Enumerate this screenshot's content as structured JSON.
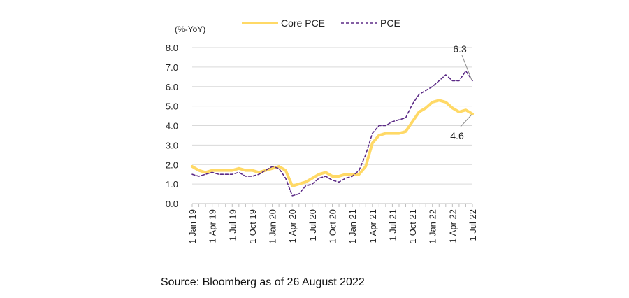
{
  "chart_data": {
    "type": "line",
    "unit_label": "(%-YoY)",
    "ylim": [
      0,
      8
    ],
    "y_ticks": [
      "0.0",
      "1.0",
      "2.0",
      "3.0",
      "4.0",
      "5.0",
      "6.0",
      "7.0",
      "8.0"
    ],
    "x_start": "2019-01",
    "x_tick_labels": [
      "1 Jan 19",
      "1 Apr 19",
      "1 Jul 19",
      "1 Oct 19",
      "1 Jan 20",
      "1 Apr 20",
      "1 Jul 20",
      "1 Oct 20",
      "1 Jan 21",
      "1 Apr 21",
      "1 Jul 21",
      "1 Oct 21",
      "1 Jan 22",
      "1 Apr 22",
      "1 Jul 22"
    ],
    "grid": true,
    "legend_position": "top",
    "series": [
      {
        "name": "Core PCE",
        "color": "#FFD966",
        "style": "solid",
        "values": [
          1.9,
          1.7,
          1.6,
          1.7,
          1.7,
          1.7,
          1.7,
          1.8,
          1.7,
          1.7,
          1.6,
          1.7,
          1.8,
          1.9,
          1.7,
          0.9,
          1.0,
          1.1,
          1.3,
          1.5,
          1.6,
          1.4,
          1.4,
          1.5,
          1.5,
          1.5,
          1.9,
          3.1,
          3.5,
          3.6,
          3.6,
          3.6,
          3.7,
          4.2,
          4.7,
          4.9,
          5.2,
          5.3,
          5.2,
          4.9,
          4.7,
          4.8,
          4.6
        ]
      },
      {
        "name": "PCE",
        "color": "#5B2A86",
        "style": "dashed",
        "values": [
          1.5,
          1.4,
          1.5,
          1.6,
          1.5,
          1.5,
          1.5,
          1.6,
          1.4,
          1.4,
          1.5,
          1.7,
          1.9,
          1.8,
          1.3,
          0.4,
          0.5,
          0.9,
          1.0,
          1.3,
          1.4,
          1.2,
          1.1,
          1.3,
          1.4,
          1.7,
          2.5,
          3.6,
          4.0,
          4.0,
          4.2,
          4.3,
          4.4,
          5.1,
          5.6,
          5.8,
          6.0,
          6.3,
          6.6,
          6.3,
          6.3,
          6.8,
          6.3
        ]
      }
    ],
    "annotations": [
      {
        "text": "6.3",
        "series": "PCE"
      },
      {
        "text": "4.6",
        "series": "Core PCE"
      }
    ]
  },
  "source_text": "Source: Bloomberg as of 26 August 2022"
}
